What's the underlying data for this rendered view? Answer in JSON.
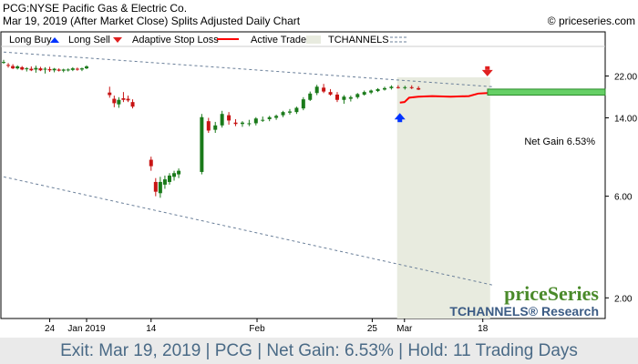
{
  "header": {
    "line1": "PCG:NYSE Pacific Gas & Electric Co.",
    "line2": "Mar 19, 2019 (After Market Close)  Splits Adjusted Daily Chart",
    "copyright": "© priceseries.com"
  },
  "legend": {
    "long_buy": "Long Buy",
    "long_sell": "Long Sell",
    "stop": "Adaptive Stop Loss",
    "active": "Active Trade",
    "channels": "TCHANNELS"
  },
  "brand": {
    "name": "priceSeries",
    "research": "TCHANNELS® Research"
  },
  "net_gain_label": "Net Gain 6.53%",
  "footer": "Exit: Mar 19, 2019 | PCG | Net Gain: 6.53% | Hold: 11 Trading Days",
  "colors": {
    "up": "#1a7a1a",
    "down": "#c81414",
    "stop": "#ff0000",
    "active_bg": "#e8ebdf",
    "gain_box": "#66d066",
    "buy": "#0033ff",
    "sell": "#e02020"
  },
  "chart_data": {
    "type": "candlestick",
    "y_scale": "log",
    "y_ticks": [
      "22.00",
      "14.00",
      "6.00",
      "2.00"
    ],
    "x_ticks": [
      "24",
      "Jan 2019",
      "14",
      "Feb",
      "25",
      "Mar",
      "18"
    ],
    "x_tick_index": [
      10,
      18,
      32,
      55,
      80,
      87,
      104
    ],
    "ohlc": [
      [
        25.5,
        26.2,
        25.1,
        25.6
      ],
      [
        24.8,
        25.3,
        24.1,
        24.6
      ],
      [
        24.5,
        25.0,
        23.7,
        23.9
      ],
      [
        23.9,
        24.7,
        23.6,
        24.4
      ],
      [
        24.2,
        24.5,
        23.4,
        23.6
      ],
      [
        23.7,
        24.2,
        23.1,
        23.9
      ],
      [
        23.8,
        24.4,
        23.2,
        23.4
      ],
      [
        23.6,
        24.6,
        22.8,
        24.0
      ],
      [
        23.9,
        24.3,
        23.2,
        23.4
      ],
      [
        23.6,
        24.2,
        22.6,
        23.8
      ],
      [
        23.7,
        24.3,
        23.0,
        23.4
      ],
      [
        23.4,
        24.0,
        22.9,
        23.8
      ],
      [
        23.6,
        23.9,
        23.1,
        23.3
      ],
      [
        23.3,
        23.8,
        22.9,
        23.6
      ],
      [
        23.5,
        23.9,
        23.1,
        23.6
      ],
      [
        23.5,
        24.2,
        23.2,
        23.9
      ],
      [
        23.8,
        24.1,
        23.3,
        23.6
      ],
      [
        23.6,
        24.1,
        23.2,
        23.9
      ],
      [
        23.9,
        24.7,
        23.7,
        24.4
      ],
      [
        18.4,
        19.6,
        17.4,
        17.9
      ],
      [
        17.2,
        17.8,
        15.7,
        16.4
      ],
      [
        16.2,
        17.5,
        15.6,
        17.0
      ],
      [
        17.3,
        18.5,
        16.6,
        17.0
      ],
      [
        17.2,
        17.8,
        16.6,
        16.9
      ],
      [
        16.6,
        17.1,
        15.5,
        15.8
      ],
      [
        8.9,
        9.2,
        7.9,
        8.3
      ],
      [
        7.0,
        7.3,
        6.0,
        6.3
      ],
      [
        6.2,
        7.4,
        5.9,
        7.0
      ],
      [
        6.8,
        7.5,
        6.5,
        7.2
      ],
      [
        7.0,
        7.7,
        6.8,
        7.5
      ],
      [
        7.4,
        7.9,
        7.1,
        7.7
      ],
      [
        7.6,
        8.1,
        7.3,
        7.9
      ],
      [
        7.8,
        14.6,
        7.6,
        14.1
      ],
      [
        13.5,
        14.0,
        11.9,
        12.2
      ],
      [
        12.3,
        13.4,
        11.9,
        12.9
      ],
      [
        12.9,
        15.1,
        12.6,
        14.6
      ],
      [
        14.4,
        14.9,
        13.0,
        13.6
      ],
      [
        13.3,
        13.8,
        12.8,
        13.1
      ],
      [
        13.1,
        13.5,
        12.7,
        13.3
      ],
      [
        13.2,
        13.7,
        12.8,
        13.2
      ],
      [
        13.2,
        14.1,
        12.9,
        13.9
      ],
      [
        13.7,
        14.2,
        13.4,
        13.7
      ],
      [
        13.8,
        14.3,
        13.5,
        14.1
      ],
      [
        14.0,
        14.5,
        13.7,
        14.3
      ],
      [
        14.4,
        15.1,
        14.1,
        14.9
      ],
      [
        14.8,
        15.4,
        14.5,
        15.0
      ],
      [
        14.9,
        15.8,
        14.6,
        15.6
      ],
      [
        15.5,
        17.5,
        15.2,
        17.1
      ],
      [
        17.0,
        18.6,
        16.8,
        18.2
      ],
      [
        18.3,
        20.0,
        17.9,
        19.6
      ],
      [
        19.4,
        20.2,
        18.3,
        18.6
      ],
      [
        18.5,
        19.1,
        17.8,
        18.0
      ],
      [
        18.0,
        18.5,
        16.6,
        17.0
      ],
      [
        17.0,
        17.9,
        16.3,
        17.6
      ],
      [
        17.2,
        17.8,
        16.7,
        17.5
      ],
      [
        17.5,
        18.3,
        17.2,
        18.1
      ],
      [
        18.0,
        18.8,
        17.8,
        18.5
      ],
      [
        18.4,
        19.0,
        18.1,
        18.8
      ],
      [
        18.7,
        19.3,
        18.5,
        19.1
      ],
      [
        19.0,
        19.6,
        18.8,
        19.3
      ],
      [
        19.3,
        19.9,
        19.0,
        19.6
      ],
      [
        19.5,
        19.9,
        19.2,
        19.4
      ],
      [
        19.4,
        19.8,
        19.0,
        19.5
      ],
      [
        19.5,
        19.9,
        19.1,
        19.3
      ],
      [
        19.3,
        19.7,
        18.9,
        19.0
      ]
    ],
    "x_index": [
      0,
      1,
      2,
      3,
      4,
      5,
      6,
      7,
      8,
      9,
      10,
      11,
      12,
      13,
      14,
      15,
      16,
      17,
      18,
      19,
      20,
      21,
      22,
      23,
      24,
      25,
      26,
      27,
      28,
      29,
      30,
      31,
      32,
      33,
      34,
      35,
      36,
      37,
      38,
      39,
      40,
      41,
      42,
      43,
      44,
      45,
      46,
      47,
      48,
      49,
      50,
      51,
      52,
      53,
      54,
      55,
      56,
      57,
      58,
      59,
      60,
      61,
      62,
      63,
      64
    ],
    "stop_loss": [
      [
        86,
        16.5
      ],
      [
        87,
        16.6
      ],
      [
        88,
        17.4
      ],
      [
        90,
        17.6
      ],
      [
        93,
        17.7
      ],
      [
        97,
        17.6
      ],
      [
        101,
        17.7
      ],
      [
        103,
        18.2
      ],
      [
        105,
        18.3
      ]
    ],
    "active_trade": {
      "start_index": 86,
      "end_index": 105
    },
    "buy_marker_index": 86,
    "sell_marker_index": 105,
    "channel_upper": [
      [
        0,
        28.5
      ],
      [
        106,
        19.6
      ]
    ],
    "channel_lower": [
      [
        0,
        7.4
      ],
      [
        106,
        2.3
      ]
    ],
    "gain_box": {
      "low": 17.9,
      "high": 19.1
    }
  }
}
